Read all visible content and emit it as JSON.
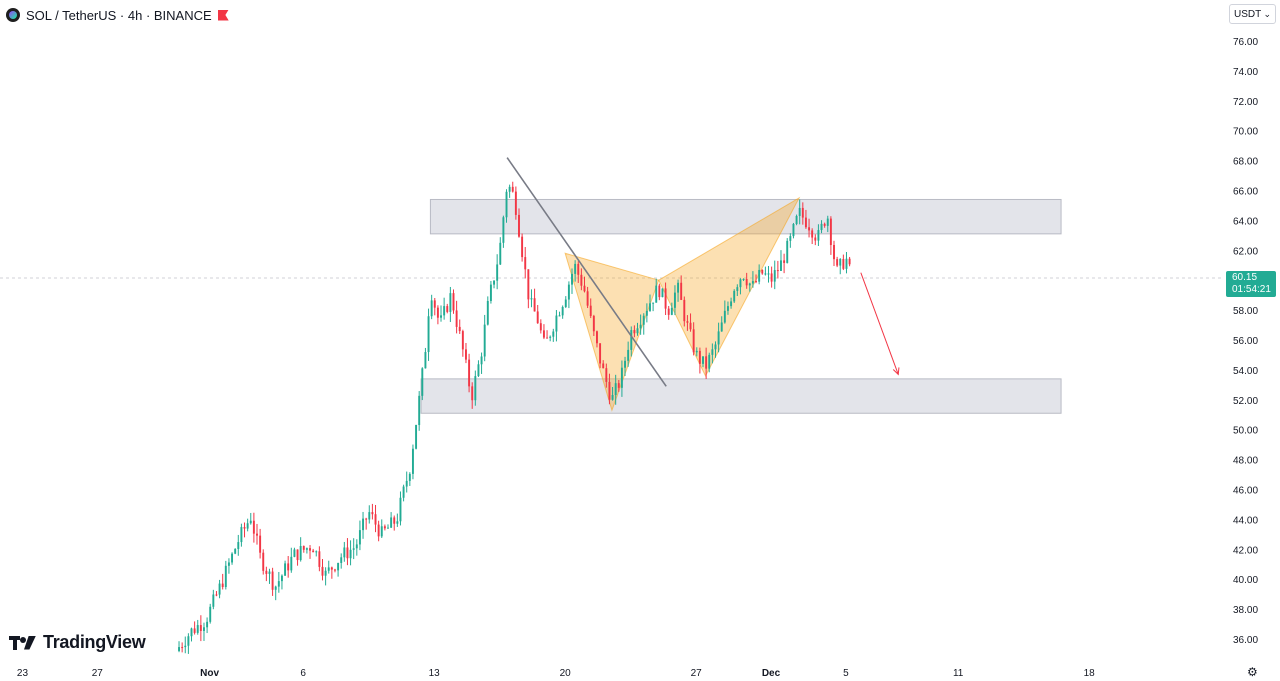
{
  "header": {
    "symbol": "SOL / TetherUS · 4h · BINANCE",
    "symbol_icon": "solana-logo-icon",
    "flag_icon": "red-flag-icon"
  },
  "currency_select": {
    "value": "USDT"
  },
  "price_badge": {
    "price": "60.15",
    "countdown": "01:54:21",
    "color": "#22ab94"
  },
  "branding": {
    "logo_text": "TradingView"
  },
  "settings_icon": "gear-icon",
  "chart_data": {
    "type": "candlestick",
    "title": "SOL / TetherUS · 4h · BINANCE",
    "ylim": [
      35,
      77
    ],
    "y_ticks": [
      "76.00",
      "74.00",
      "72.00",
      "70.00",
      "68.00",
      "66.00",
      "64.00",
      "62.00",
      "60.00",
      "58.00",
      "56.00",
      "54.00",
      "52.00",
      "50.00",
      "48.00",
      "46.00",
      "44.00",
      "42.00",
      "40.00",
      "38.00",
      "36.00"
    ],
    "x_ticks": [
      {
        "label": "23",
        "day": -9
      },
      {
        "label": "27",
        "day": -5
      },
      {
        "label": "Nov",
        "day": 1
      },
      {
        "label": "6",
        "day": 6
      },
      {
        "label": "13",
        "day": 13
      },
      {
        "label": "20",
        "day": 20
      },
      {
        "label": "27",
        "day": 27
      },
      {
        "label": "Dec",
        "day": 31
      },
      {
        "label": "5",
        "day": 35
      },
      {
        "label": "11",
        "day": 41
      },
      {
        "label": "18",
        "day": 48
      }
    ],
    "x_range_days": [
      -10.2,
      55.1
    ],
    "last_price": 60.15,
    "up_color": "#22ab94",
    "down_color": "#f23645",
    "anchors": [
      {
        "day": -0.8,
        "price": 35.2
      },
      {
        "day": 0.0,
        "price": 36.5
      },
      {
        "day": 0.8,
        "price": 37.3
      },
      {
        "day": 1.5,
        "price": 39.3
      },
      {
        "day": 2.5,
        "price": 42.5
      },
      {
        "day": 3.2,
        "price": 44.2
      },
      {
        "day": 3.7,
        "price": 41.5
      },
      {
        "day": 4.5,
        "price": 39.5
      },
      {
        "day": 5.5,
        "price": 41.6
      },
      {
        "day": 6.5,
        "price": 42.3
      },
      {
        "day": 7.2,
        "price": 40.3
      },
      {
        "day": 8.0,
        "price": 41.5
      },
      {
        "day": 8.8,
        "price": 42.2
      },
      {
        "day": 9.5,
        "price": 44.5
      },
      {
        "day": 10.2,
        "price": 43.0
      },
      {
        "day": 11.0,
        "price": 44.0
      },
      {
        "day": 11.7,
        "price": 47.5
      },
      {
        "day": 12.2,
        "price": 52.0
      },
      {
        "day": 12.5,
        "price": 55.0
      },
      {
        "day": 12.8,
        "price": 59.5
      },
      {
        "day": 13.3,
        "price": 57.0
      },
      {
        "day": 13.9,
        "price": 59.0
      },
      {
        "day": 14.5,
        "price": 55.5
      },
      {
        "day": 15.0,
        "price": 52.2
      },
      {
        "day": 15.5,
        "price": 55.0
      },
      {
        "day": 15.9,
        "price": 58.5
      },
      {
        "day": 16.5,
        "price": 62.0
      },
      {
        "day": 16.9,
        "price": 66.5
      },
      {
        "day": 17.3,
        "price": 65.5
      },
      {
        "day": 17.7,
        "price": 62.0
      },
      {
        "day": 18.1,
        "price": 58.5
      },
      {
        "day": 18.5,
        "price": 57.5
      },
      {
        "day": 18.9,
        "price": 55.5
      },
      {
        "day": 19.5,
        "price": 57.5
      },
      {
        "day": 20.0,
        "price": 59.0
      },
      {
        "day": 20.5,
        "price": 61.0
      },
      {
        "day": 21.0,
        "price": 59.5
      },
      {
        "day": 21.5,
        "price": 56.5
      },
      {
        "day": 22.0,
        "price": 54.0
      },
      {
        "day": 22.5,
        "price": 52.0
      },
      {
        "day": 23.0,
        "price": 53.5
      },
      {
        "day": 23.5,
        "price": 56.5
      },
      {
        "day": 24.0,
        "price": 57.5
      },
      {
        "day": 24.5,
        "price": 58.5
      },
      {
        "day": 25.0,
        "price": 59.5
      },
      {
        "day": 25.5,
        "price": 58.0
      },
      {
        "day": 26.0,
        "price": 59.5
      },
      {
        "day": 26.5,
        "price": 57.0
      },
      {
        "day": 27.0,
        "price": 55.0
      },
      {
        "day": 27.5,
        "price": 54.2
      },
      {
        "day": 28.0,
        "price": 55.5
      },
      {
        "day": 28.5,
        "price": 57.5
      },
      {
        "day": 29.0,
        "price": 59.5
      },
      {
        "day": 29.5,
        "price": 60.5
      },
      {
        "day": 30.0,
        "price": 59.5
      },
      {
        "day": 30.5,
        "price": 60.5
      },
      {
        "day": 31.0,
        "price": 60.0
      },
      {
        "day": 31.5,
        "price": 61.0
      },
      {
        "day": 32.0,
        "price": 62.5
      },
      {
        "day": 32.5,
        "price": 64.5
      },
      {
        "day": 33.0,
        "price": 63.8
      },
      {
        "day": 33.5,
        "price": 62.8
      },
      {
        "day": 34.0,
        "price": 64.5
      },
      {
        "day": 34.5,
        "price": 60.5
      },
      {
        "day": 35.0,
        "price": 61.5
      },
      {
        "day": 35.3,
        "price": 60.15
      }
    ],
    "zones": [
      {
        "name": "resistance-zone",
        "day_start": 12.8,
        "day_end": 46.5,
        "price_top": 65.4,
        "price_bottom": 63.1
      },
      {
        "name": "support-zone",
        "day_start": 12.3,
        "day_end": 46.5,
        "price_top": 53.4,
        "price_bottom": 51.1
      }
    ],
    "trendline": {
      "points": [
        {
          "day": 16.9,
          "price": 68.2
        },
        {
          "day": 25.4,
          "price": 52.9
        }
      ],
      "color": "#787b86"
    },
    "harmonic_pattern": {
      "color": "#f5a623",
      "points": [
        {
          "day": 20.0,
          "price": 61.8
        },
        {
          "day": 22.5,
          "price": 51.3
        },
        {
          "day": 25.0,
          "price": 60.0
        },
        {
          "day": 27.5,
          "price": 53.6
        },
        {
          "day": 32.5,
          "price": 65.5
        }
      ]
    },
    "projection_arrow": {
      "points": [
        {
          "day": 35.8,
          "price": 60.5
        },
        {
          "day": 37.8,
          "price": 53.7
        }
      ],
      "color": "#f23645"
    }
  }
}
